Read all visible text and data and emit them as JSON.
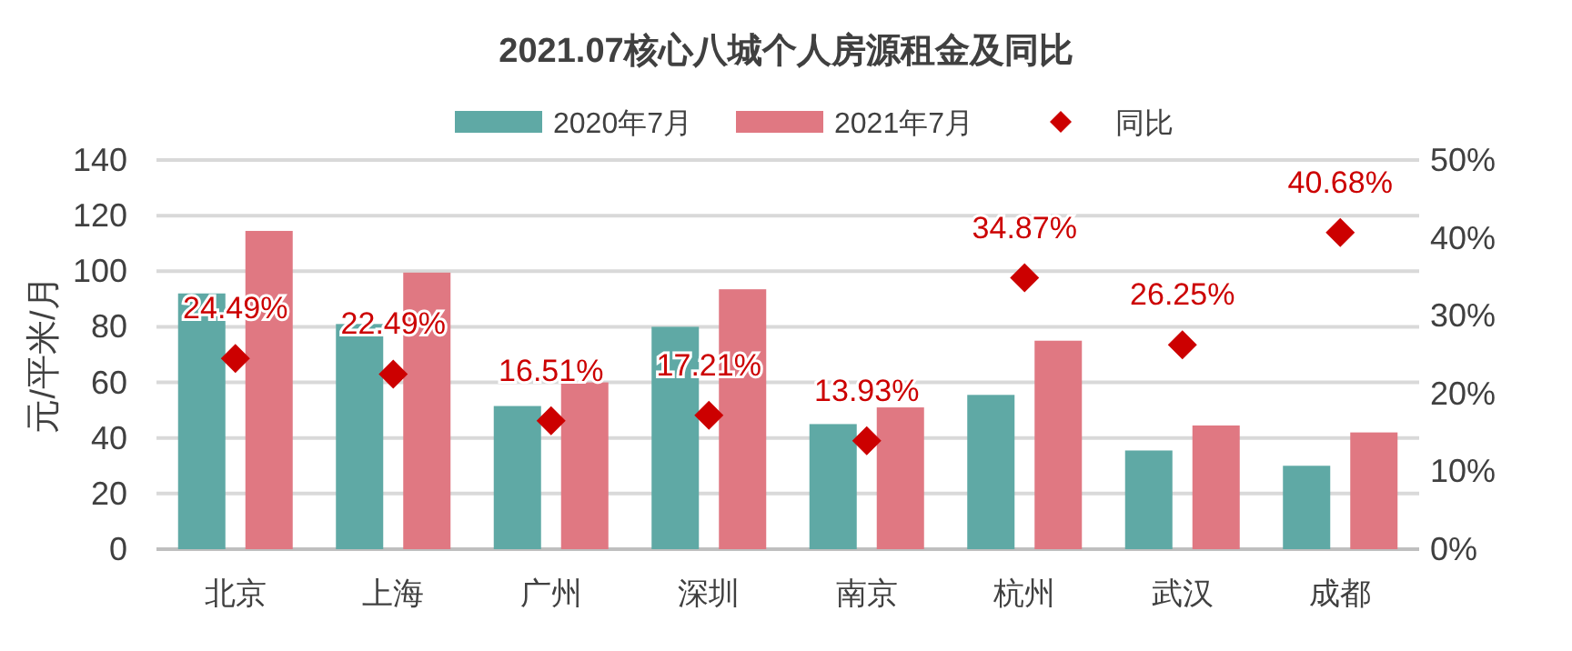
{
  "chart_data": {
    "type": "bar",
    "title": "2021.07核心八城个人房源租金及同比",
    "ylabel": "元/平米/月",
    "categories": [
      "北京",
      "上海",
      "广州",
      "深圳",
      "南京",
      "杭州",
      "武汉",
      "成都"
    ],
    "series": [
      {
        "name": "2020年7月",
        "color": "#5fa9a5",
        "values": [
          92,
          81,
          51.5,
          80,
          45,
          55.5,
          35.5,
          30
        ]
      },
      {
        "name": "2021年7月",
        "color": "#e07882",
        "values": [
          114.5,
          99.5,
          60,
          93.5,
          51,
          75,
          44.5,
          42
        ]
      },
      {
        "name": "同比",
        "type": "scatter",
        "axis": "y2",
        "color": "#cc0000",
        "values": [
          24.49,
          22.49,
          16.51,
          17.21,
          13.93,
          34.87,
          26.25,
          40.68
        ],
        "value_labels": [
          "24.49%",
          "22.49%",
          "16.51%",
          "17.21%",
          "13.93%",
          "34.87%",
          "26.25%",
          "40.68%"
        ]
      }
    ],
    "ylim": [
      0,
      140
    ],
    "yticks": [
      0,
      20,
      40,
      60,
      80,
      100,
      120,
      140
    ],
    "y2lim": [
      0,
      50
    ],
    "y2ticks": [
      {
        "value": 0,
        "label": "0%"
      },
      {
        "value": 10,
        "label": "10%"
      },
      {
        "value": 20,
        "label": "20%"
      },
      {
        "value": 30,
        "label": "30%"
      },
      {
        "value": 40,
        "label": "40%"
      },
      {
        "value": 50,
        "label": "50%"
      }
    ],
    "grid": "y",
    "legend": "top",
    "marker": "diamond"
  }
}
